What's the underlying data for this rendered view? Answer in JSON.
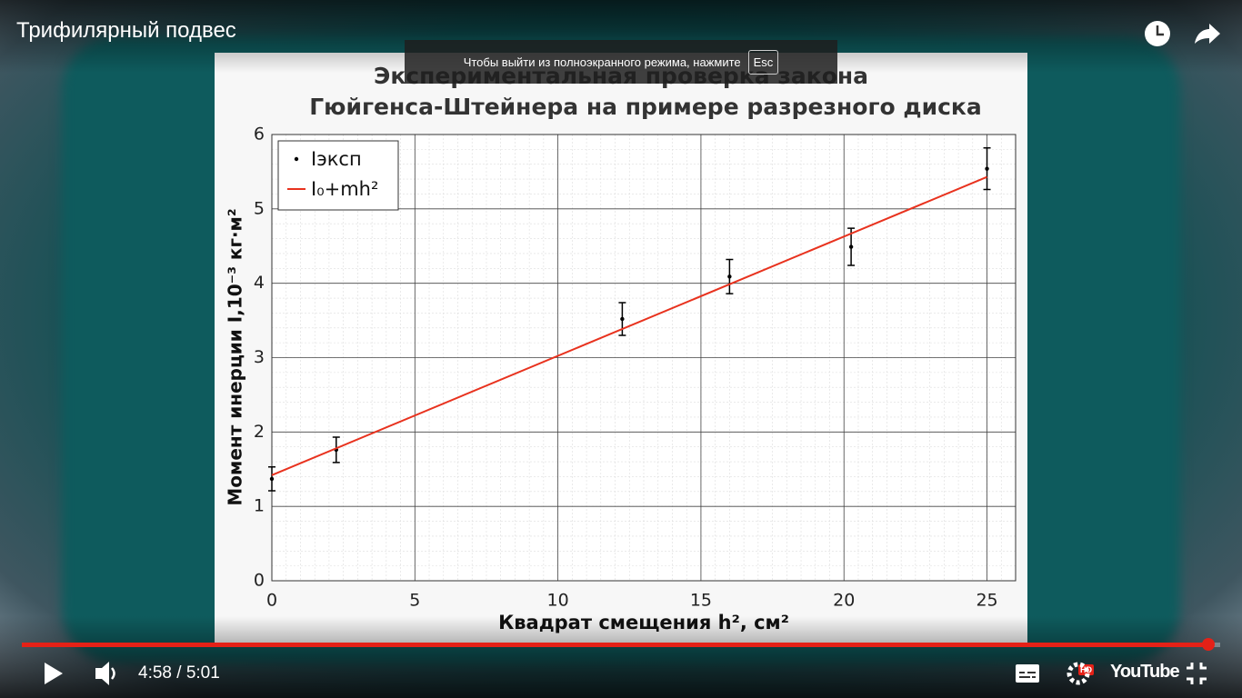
{
  "video_title": "Трифилярный подвес",
  "fullscreen_notice": {
    "text": "Чтобы выйти из полноэкранного режима, нажмите",
    "key": "Esc"
  },
  "player": {
    "time": "4:58 / 5:01",
    "hd_badge": "HD",
    "logo": "YouTube"
  },
  "chart_data": {
    "type": "scatter",
    "title": [
      "Экспериментальная проверка закона",
      "Гюйгенса-Штейнера на примере разрезного диска"
    ],
    "x_label": "Квадрат смещения h², см²",
    "y_label": "Момент инерции I,10⁻³ кг·м²",
    "xlim": [
      0,
      26
    ],
    "ylim": [
      0,
      6
    ],
    "xticks": [
      0,
      5,
      10,
      15,
      20,
      25
    ],
    "yticks": [
      0,
      1,
      2,
      3,
      4,
      5,
      6
    ],
    "grid": true,
    "legend": "upper left",
    "series": [
      {
        "name": "Iэксп",
        "type": "errorbar",
        "color": "#000000",
        "x": [
          0,
          2.25,
          12.25,
          16,
          20.25,
          25
        ],
        "values": [
          1.37,
          1.76,
          3.52,
          4.09,
          4.49,
          5.54
        ],
        "errors": [
          0.16,
          0.17,
          0.22,
          0.23,
          0.25,
          0.28
        ]
      },
      {
        "name": "I₀+mh²",
        "type": "line",
        "color": "#e8321e",
        "x": [
          0,
          25
        ],
        "values": [
          1.42,
          5.43
        ]
      }
    ]
  }
}
